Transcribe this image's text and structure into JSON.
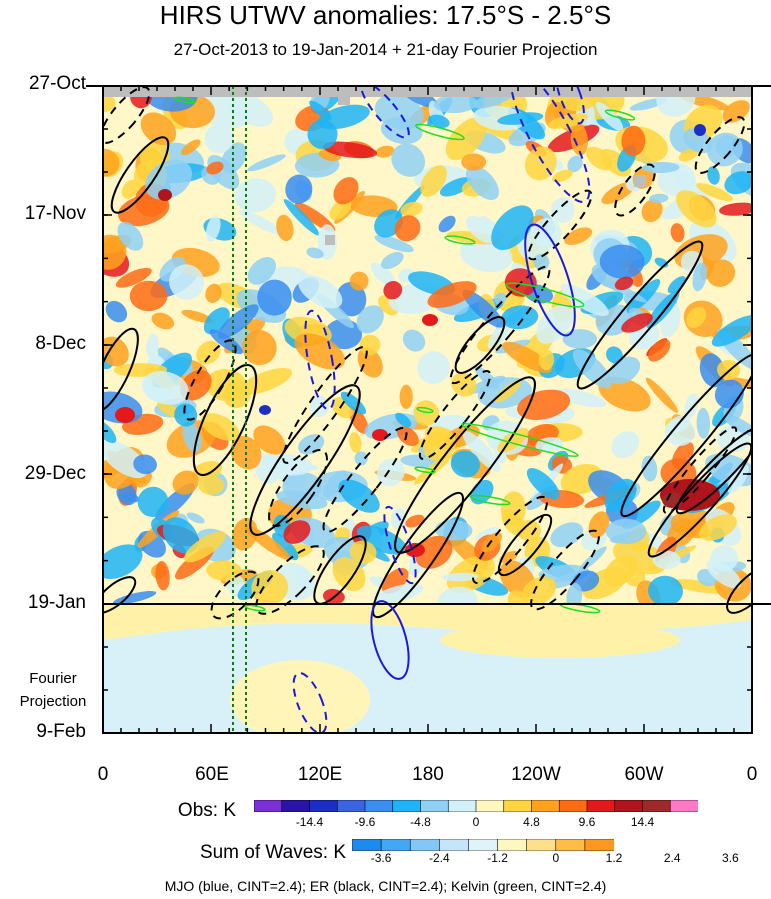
{
  "chart_data": {
    "type": "heatmap",
    "title": "HIRS UTWV anomalies: 17.5°S - 2.5°S",
    "subtitle": "27-Oct-2013 to 19-Jan-2014 + 21-day Fourier Projection",
    "y_ticks": [
      "27-Oct",
      "17-Nov",
      "8-Dec",
      "29-Dec",
      "19-Jan",
      "9-Feb"
    ],
    "x_ticks": [
      "0",
      "60E",
      "120E",
      "180",
      "120W",
      "60W",
      "0"
    ],
    "xlim": [
      0,
      360
    ],
    "projection_label_line1": "Fourier",
    "projection_label_line2": "Projection",
    "colorbars": [
      {
        "label": "Obs: K",
        "ticks": [
          "-14.4",
          "-9.6",
          "-4.8",
          "0",
          "4.8",
          "9.6",
          "14.4"
        ],
        "colors": [
          "#7b2fd6",
          "#2a14a8",
          "#1c2fc4",
          "#3a64e0",
          "#3a8ef0",
          "#1fb4f5",
          "#8fd0f5",
          "#d2f1f8",
          "#fff7c0",
          "#ffd640",
          "#ffa21e",
          "#ff6b14",
          "#e4191c",
          "#b0151d",
          "#9d2a2a",
          "#ff78c4"
        ]
      },
      {
        "label": "Sum of Waves: K",
        "ticks": [
          "-3.6",
          "-2.4",
          "-1.2",
          "0",
          "1.2",
          "2.4",
          "3.6"
        ],
        "colors": [
          "#1c8bef",
          "#42a7f5",
          "#82c7f7",
          "#c4e6f8",
          "#e0f3f8",
          "#fff7c0",
          "#ffe08a",
          "#ffbd45",
          "#ff9720"
        ]
      }
    ],
    "legend_note": "MJO (blue, CINT=2.4); ER (black, CINT=2.4); Kelvin (green, CINT=2.4)"
  }
}
